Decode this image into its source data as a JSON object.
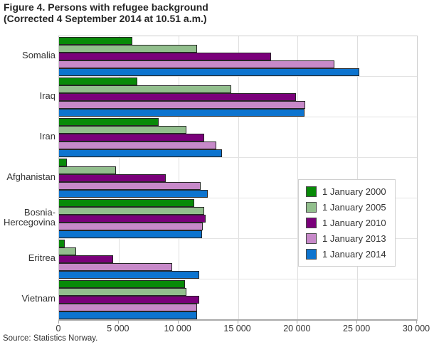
{
  "header": {
    "title": "Figure 4.  Persons with refugee background",
    "subtitle": "(Corrected 4 September 2014 at 10.51 a.m.)"
  },
  "footer": {
    "source": "Source: Statistics Norway."
  },
  "chart_data": {
    "type": "bar",
    "orientation": "horizontal",
    "title": "Figure 4.  Persons with refugee background",
    "subtitle": "(Corrected 4 September 2014 at 10.51 a.m.)",
    "categories": [
      "Somalia",
      "Iraq",
      "Iran",
      "Afghanistan",
      "Bosnia-\nHercegovina",
      "Eritrea",
      "Vietnam"
    ],
    "series": [
      {
        "name": "1 January 2000",
        "color": "#088a08",
        "values": [
          6100,
          6500,
          8300,
          600,
          11300,
          400,
          10500
        ]
      },
      {
        "name": "1 January 2005",
        "color": "#92bf8d",
        "values": [
          11500,
          14400,
          10600,
          4700,
          12100,
          1400,
          10600
        ]
      },
      {
        "name": "1 January 2010",
        "color": "#7a007a",
        "values": [
          17700,
          19800,
          12100,
          8900,
          12200,
          4500,
          11700
        ]
      },
      {
        "name": "1 January 2013",
        "color": "#c789c9",
        "values": [
          23000,
          20600,
          13100,
          11800,
          12000,
          9400,
          11500
        ]
      },
      {
        "name": "1 January 2014",
        "color": "#0d74cf",
        "values": [
          25100,
          20500,
          13600,
          12400,
          11900,
          11700,
          11500
        ]
      }
    ],
    "xlim": [
      0,
      30000
    ],
    "x_tick_values": [
      0,
      5000,
      10000,
      15000,
      20000,
      25000,
      30000
    ],
    "x_tick_labels": [
      "0",
      "5 000",
      "10 000",
      "15 000",
      "20 000",
      "25 000",
      "30 000"
    ],
    "grid": "on",
    "legend_position": "right-middle",
    "colors": {
      "bar_border": "#262626",
      "gridline": "#dedede",
      "plot_border": "#cccccc",
      "axis_line": "#a9a9a9",
      "text": "#333333"
    }
  }
}
